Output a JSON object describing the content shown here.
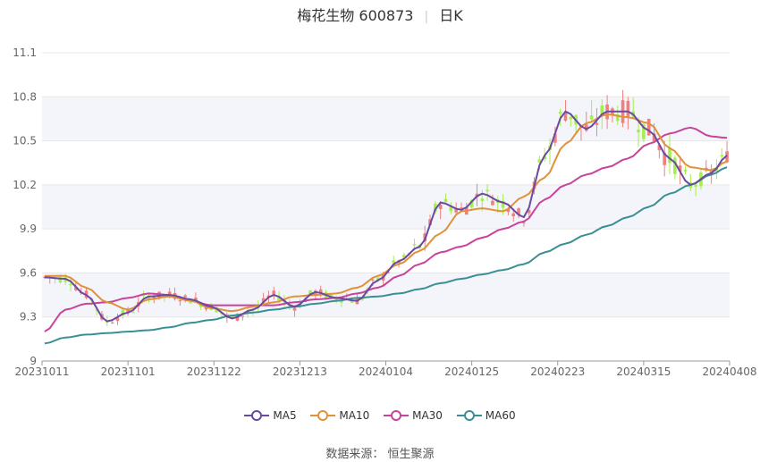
{
  "title": {
    "stock": "梅花生物 600873",
    "period": "日K"
  },
  "source": "数据来源： 恒生聚源",
  "colors": {
    "up": "#f08080",
    "down": "#a4ef4b",
    "ma5": "#6a4aa0",
    "ma10": "#e0913a",
    "ma30": "#c8449a",
    "ma60": "#3a8f95",
    "grid": "#e6e6e6",
    "band": "#f4f5fb"
  },
  "chart_data": {
    "type": "candlestick",
    "ylim": [
      9.0,
      11.1
    ],
    "y_ticks": [
      "9",
      "9.3",
      "9.6",
      "9.9",
      "10.2",
      "10.5",
      "10.8",
      "11.1"
    ],
    "x_ticks": [
      "20231011",
      "20231101",
      "20231122",
      "20231213",
      "20240104",
      "20240125",
      "20240223",
      "20240315",
      "20240408"
    ],
    "legend": [
      {
        "name": "MA5",
        "color_key": "ma5"
      },
      {
        "name": "MA10",
        "color_key": "ma10"
      },
      {
        "name": "MA30",
        "color_key": "ma30"
      },
      {
        "name": "MA60",
        "color_key": "ma60"
      }
    ],
    "ma_anchors": {
      "ma5": [
        [
          0,
          9.57
        ],
        [
          4,
          9.56
        ],
        [
          8,
          9.45
        ],
        [
          12,
          9.27
        ],
        [
          16,
          9.33
        ],
        [
          20,
          9.44
        ],
        [
          24,
          9.45
        ],
        [
          28,
          9.42
        ],
        [
          32,
          9.37
        ],
        [
          36,
          9.29
        ],
        [
          40,
          9.35
        ],
        [
          44,
          9.45
        ],
        [
          48,
          9.37
        ],
        [
          52,
          9.47
        ],
        [
          56,
          9.43
        ],
        [
          60,
          9.41
        ],
        [
          64,
          9.55
        ],
        [
          68,
          9.68
        ],
        [
          72,
          9.78
        ],
        [
          76,
          10.08
        ],
        [
          80,
          10.03
        ],
        [
          84,
          10.14
        ],
        [
          88,
          10.08
        ],
        [
          92,
          9.98
        ],
        [
          96,
          10.4
        ],
        [
          100,
          10.7
        ],
        [
          104,
          10.58
        ],
        [
          108,
          10.7
        ],
        [
          112,
          10.7
        ],
        [
          116,
          10.57
        ],
        [
          120,
          10.38
        ],
        [
          124,
          10.2
        ],
        [
          128,
          10.28
        ],
        [
          131,
          10.4
        ]
      ],
      "ma10": [
        [
          0,
          9.58
        ],
        [
          4,
          9.58
        ],
        [
          8,
          9.5
        ],
        [
          12,
          9.4
        ],
        [
          16,
          9.35
        ],
        [
          20,
          9.42
        ],
        [
          24,
          9.44
        ],
        [
          28,
          9.41
        ],
        [
          32,
          9.36
        ],
        [
          36,
          9.34
        ],
        [
          40,
          9.37
        ],
        [
          44,
          9.4
        ],
        [
          48,
          9.44
        ],
        [
          52,
          9.45
        ],
        [
          56,
          9.46
        ],
        [
          60,
          9.5
        ],
        [
          64,
          9.58
        ],
        [
          68,
          9.66
        ],
        [
          72,
          9.75
        ],
        [
          76,
          9.87
        ],
        [
          80,
          10.02
        ],
        [
          84,
          10.04
        ],
        [
          88,
          10.02
        ],
        [
          92,
          10.12
        ],
        [
          96,
          10.25
        ],
        [
          100,
          10.48
        ],
        [
          104,
          10.62
        ],
        [
          108,
          10.68
        ],
        [
          112,
          10.66
        ],
        [
          116,
          10.62
        ],
        [
          120,
          10.45
        ],
        [
          124,
          10.32
        ],
        [
          128,
          10.3
        ],
        [
          131,
          10.36
        ]
      ],
      "ma30": [
        [
          0,
          9.2
        ],
        [
          4,
          9.35
        ],
        [
          8,
          9.39
        ],
        [
          12,
          9.4
        ],
        [
          16,
          9.43
        ],
        [
          20,
          9.46
        ],
        [
          24,
          9.45
        ],
        [
          28,
          9.41
        ],
        [
          32,
          9.38
        ],
        [
          36,
          9.38
        ],
        [
          40,
          9.38
        ],
        [
          44,
          9.38
        ],
        [
          48,
          9.4
        ],
        [
          52,
          9.42
        ],
        [
          56,
          9.43
        ],
        [
          60,
          9.46
        ],
        [
          64,
          9.5
        ],
        [
          68,
          9.58
        ],
        [
          72,
          9.66
        ],
        [
          76,
          9.74
        ],
        [
          80,
          9.78
        ],
        [
          84,
          9.84
        ],
        [
          88,
          9.9
        ],
        [
          92,
          9.95
        ],
        [
          96,
          10.1
        ],
        [
          100,
          10.2
        ],
        [
          104,
          10.27
        ],
        [
          108,
          10.32
        ],
        [
          112,
          10.38
        ],
        [
          116,
          10.48
        ],
        [
          120,
          10.55
        ],
        [
          124,
          10.59
        ],
        [
          128,
          10.53
        ],
        [
          131,
          10.52
        ]
      ],
      "ma60": [
        [
          0,
          9.12
        ],
        [
          4,
          9.16
        ],
        [
          8,
          9.18
        ],
        [
          12,
          9.19
        ],
        [
          16,
          9.2
        ],
        [
          20,
          9.21
        ],
        [
          24,
          9.23
        ],
        [
          28,
          9.26
        ],
        [
          32,
          9.28
        ],
        [
          36,
          9.31
        ],
        [
          40,
          9.33
        ],
        [
          44,
          9.35
        ],
        [
          48,
          9.37
        ],
        [
          52,
          9.39
        ],
        [
          56,
          9.41
        ],
        [
          60,
          9.43
        ],
        [
          64,
          9.44
        ],
        [
          68,
          9.46
        ],
        [
          72,
          9.49
        ],
        [
          76,
          9.53
        ],
        [
          80,
          9.56
        ],
        [
          84,
          9.59
        ],
        [
          88,
          9.62
        ],
        [
          92,
          9.66
        ],
        [
          96,
          9.74
        ],
        [
          100,
          9.8
        ],
        [
          104,
          9.86
        ],
        [
          108,
          9.92
        ],
        [
          112,
          9.98
        ],
        [
          116,
          10.05
        ],
        [
          120,
          10.14
        ],
        [
          124,
          10.2
        ],
        [
          128,
          10.27
        ],
        [
          131,
          10.32
        ]
      ]
    }
  }
}
